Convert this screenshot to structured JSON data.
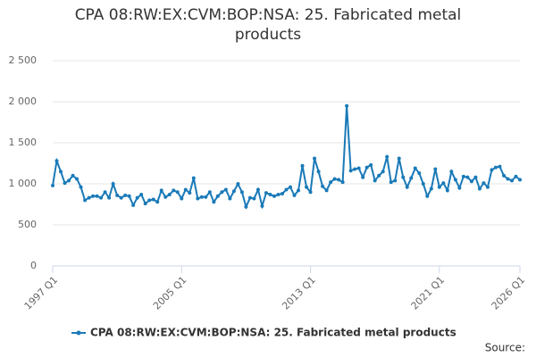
{
  "chart_data": {
    "type": "line",
    "title": "CPA 08:RW:EX:CVM:BOP:NSA: 25. Fabricated metal products",
    "source": "Source:",
    "categories": [
      "1997 Q1",
      null,
      null,
      null,
      null,
      null,
      null,
      null,
      null,
      null,
      null,
      null,
      null,
      null,
      null,
      null,
      null,
      null,
      null,
      null,
      null,
      null,
      null,
      null,
      null,
      null,
      null,
      null,
      null,
      null,
      null,
      null,
      "2005 Q1",
      null,
      null,
      null,
      null,
      null,
      null,
      null,
      null,
      null,
      null,
      null,
      null,
      null,
      null,
      null,
      null,
      null,
      null,
      null,
      null,
      null,
      null,
      null,
      null,
      null,
      null,
      null,
      null,
      null,
      null,
      null,
      "2013 Q1",
      null,
      null,
      null,
      null,
      null,
      null,
      null,
      null,
      null,
      null,
      null,
      null,
      null,
      null,
      null,
      null,
      null,
      null,
      null,
      null,
      null,
      null,
      null,
      null,
      null,
      null,
      null,
      null,
      null,
      null,
      null,
      "2021 Q1",
      null,
      null,
      null,
      null,
      null,
      null,
      null,
      null,
      null,
      null,
      null,
      null,
      null,
      null,
      null,
      null,
      null,
      null,
      null,
      "2026 Q1"
    ],
    "series": [
      {
        "name": "CPA 08:RW:EX:CVM:BOP:NSA: 25. Fabricated metal products",
        "color": "#1a7ab8",
        "values": [
          980,
          1280,
          1150,
          1010,
          1040,
          1100,
          1060,
          960,
          800,
          830,
          850,
          850,
          830,
          900,
          830,
          1000,
          860,
          830,
          860,
          850,
          740,
          830,
          870,
          760,
          800,
          810,
          780,
          920,
          840,
          870,
          920,
          900,
          820,
          930,
          890,
          1070,
          820,
          840,
          840,
          900,
          780,
          850,
          900,
          930,
          820,
          910,
          1000,
          900,
          720,
          830,
          820,
          930,
          730,
          890,
          870,
          850,
          870,
          880,
          930,
          960,
          860,
          920,
          1220,
          960,
          900,
          1310,
          1150,
          970,
          920,
          1020,
          1060,
          1050,
          1020,
          1950,
          1160,
          1180,
          1190,
          1080,
          1200,
          1230,
          1040,
          1100,
          1150,
          1330,
          1020,
          1040,
          1310,
          1080,
          960,
          1070,
          1190,
          1130,
          1000,
          850,
          940,
          1180,
          960,
          1010,
          920,
          1150,
          1050,
          950,
          1090,
          1080,
          1030,
          1080,
          940,
          1010,
          960,
          1170,
          1200,
          1210,
          1100,
          1060,
          1040,
          1090,
          1050
        ]
      }
    ],
    "ylim": [
      0,
      2500
    ],
    "yticks": [
      0,
      500,
      {
        "value": 1000,
        "label": "1 000"
      },
      {
        "value": 1500,
        "label": "1 500"
      },
      {
        "value": 2000,
        "label": "2 000"
      },
      {
        "value": 2500,
        "label": "2 500"
      }
    ],
    "grid": true,
    "legend": "bottom"
  }
}
